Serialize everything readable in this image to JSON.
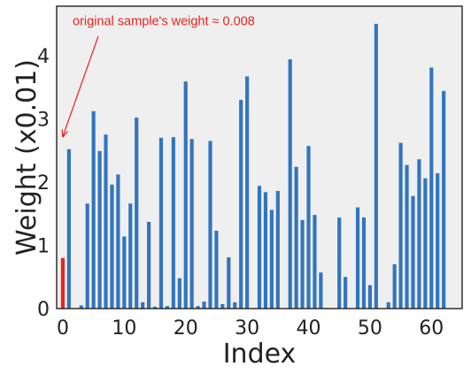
{
  "chart_data": {
    "type": "bar",
    "title": "",
    "xlabel": "Index",
    "ylabel": "Weight (x0.01)",
    "xlim": [
      -1,
      65
    ],
    "ylim": [
      0,
      4.78
    ],
    "x_ticks": [
      0,
      10,
      20,
      30,
      40,
      50,
      60
    ],
    "y_ticks": [
      0,
      1,
      2,
      3,
      4
    ],
    "grid": false,
    "background_color": "#efefef",
    "bar_color": "#3275be",
    "highlight_color": "#e8231e",
    "highlight_index": 0,
    "x": [
      0,
      1,
      2,
      3,
      4,
      5,
      6,
      7,
      8,
      9,
      10,
      11,
      12,
      13,
      14,
      15,
      16,
      17,
      18,
      19,
      20,
      21,
      22,
      23,
      24,
      25,
      26,
      27,
      28,
      29,
      30,
      31,
      32,
      33,
      34,
      35,
      36,
      37,
      38,
      39,
      40,
      41,
      42,
      43,
      44,
      45,
      46,
      47,
      48,
      49,
      50,
      51,
      52,
      53,
      54,
      55,
      56,
      57,
      58,
      59,
      60,
      61,
      62,
      63
    ],
    "values": [
      0.8,
      2.52,
      0.0,
      0.05,
      1.66,
      3.12,
      2.49,
      2.75,
      1.96,
      2.12,
      1.14,
      1.66,
      3.02,
      0.1,
      1.37,
      0.03,
      2.7,
      0.04,
      2.71,
      0.48,
      3.59,
      2.68,
      0.04,
      0.11,
      2.65,
      1.23,
      0.07,
      0.81,
      0.1,
      3.3,
      3.67,
      0.0,
      1.94,
      1.84,
      1.56,
      1.86,
      0.0,
      3.94,
      2.24,
      1.4,
      2.57,
      1.48,
      0.57,
      0.01,
      0.0,
      1.44,
      0.5,
      0.0,
      1.6,
      1.44,
      0.37,
      4.5,
      0.0,
      0.1,
      0.7,
      2.62,
      2.27,
      1.78,
      2.36,
      2.06,
      3.81,
      2.14,
      3.44,
      0.0
    ],
    "annotation": {
      "text": "original sample's weight ≈ 0.008",
      "color": "#e8231e",
      "target_index": 0,
      "target_value": 2.72,
      "text_x": 1.6,
      "text_y": 4.48
    }
  }
}
